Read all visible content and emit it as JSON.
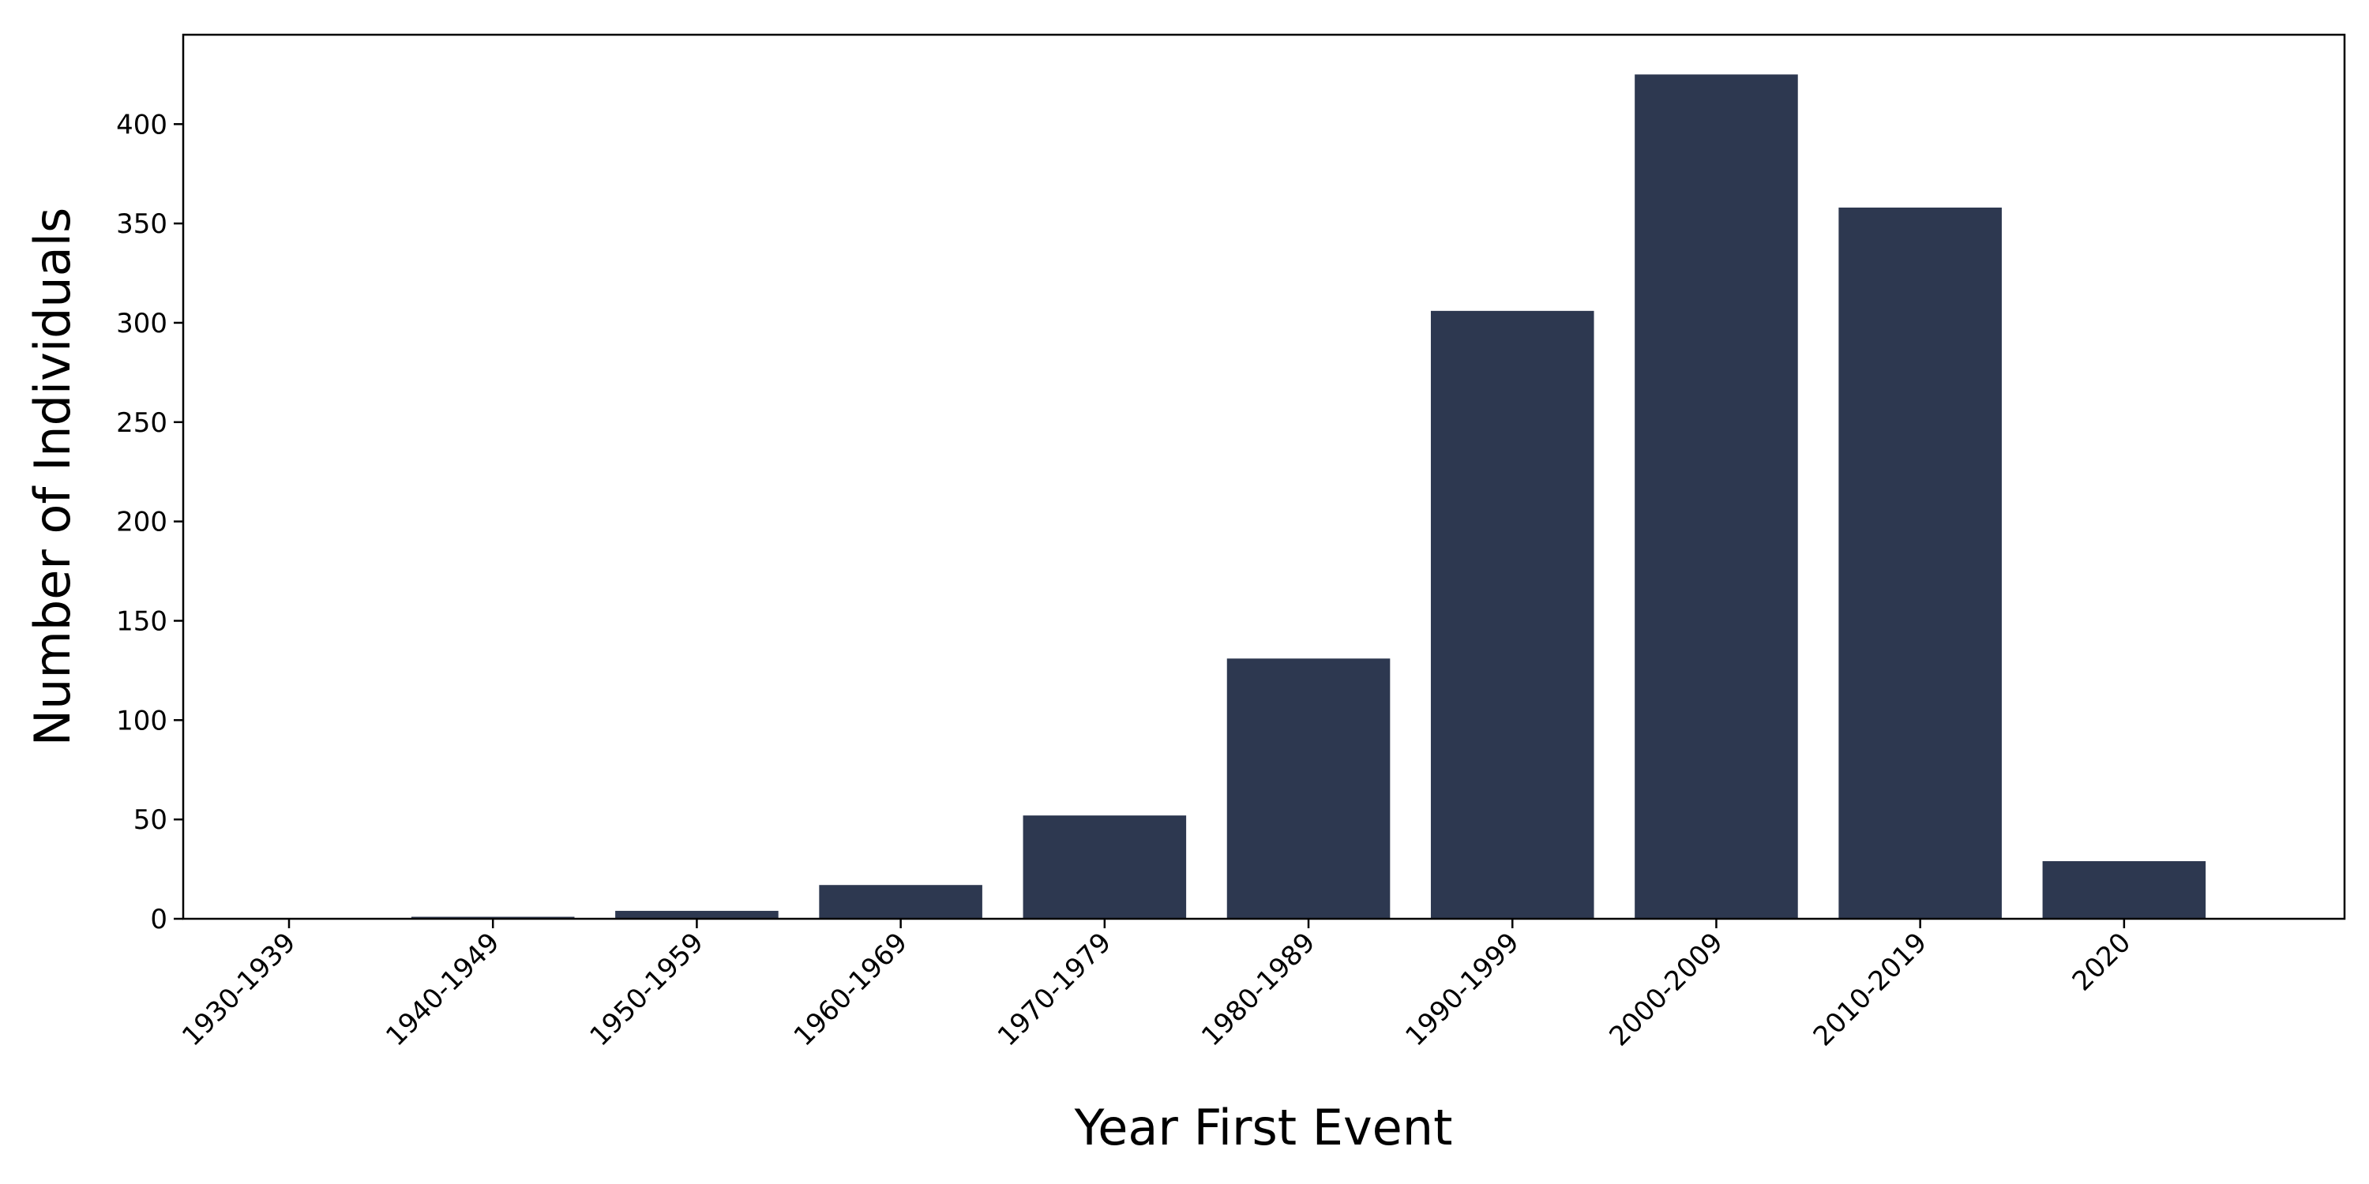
{
  "chart_data": {
    "type": "bar",
    "categories": [
      "1930-1939",
      "1940-1949",
      "1950-1959",
      "1960-1969",
      "1970-1979",
      "1980-1989",
      "1990-1999",
      "2000-2009",
      "2010-2019",
      "2020"
    ],
    "values": [
      0,
      1,
      4,
      17,
      52,
      131,
      306,
      425,
      358,
      29
    ],
    "xlabel": "Year First Event",
    "ylabel": "Number of Individuals",
    "ylim": [
      0,
      445
    ],
    "yticks": [
      0,
      50,
      100,
      150,
      200,
      250,
      300,
      350,
      400
    ],
    "grid": false,
    "legend": "none",
    "bar_color": "#2d3850"
  }
}
